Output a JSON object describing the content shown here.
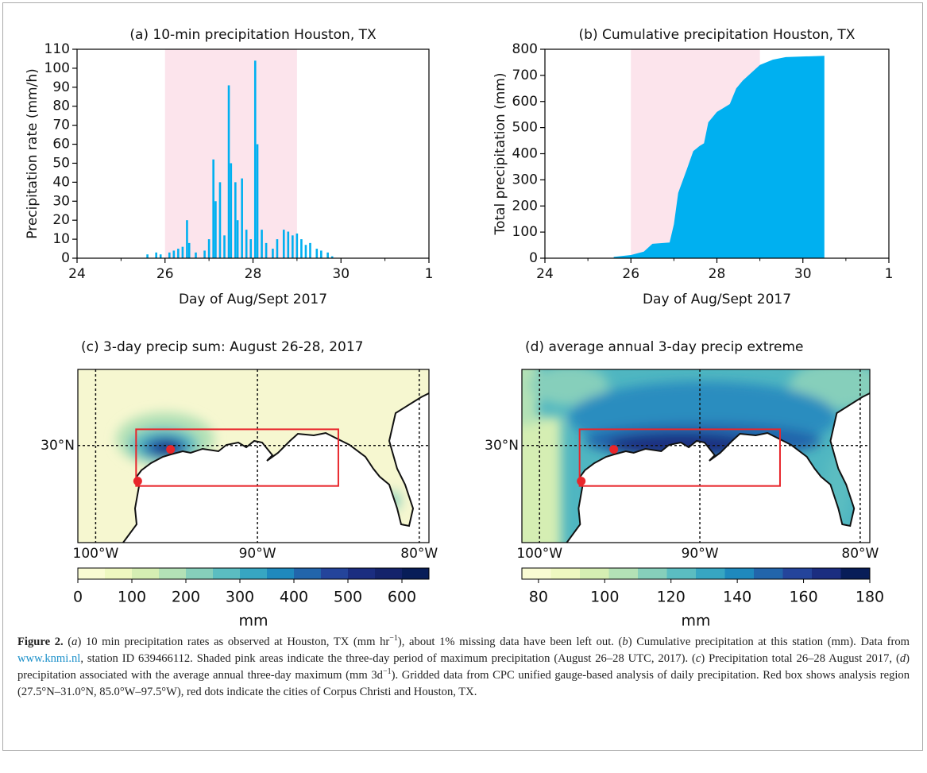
{
  "chart_data": [
    {
      "type": "bar",
      "title": "(a) 10-min precipitation Houston, TX",
      "xlabel": "Day of Aug/Sept 2017",
      "ylabel": "Precipitation rate (mm/h)",
      "x": [
        25.6,
        25.8,
        25.9,
        26.1,
        26.2,
        26.3,
        26.4,
        26.5,
        26.55,
        26.7,
        26.9,
        27.0,
        27.1,
        27.15,
        27.25,
        27.35,
        27.45,
        27.5,
        27.6,
        27.65,
        27.75,
        27.85,
        27.95,
        28.05,
        28.1,
        28.2,
        28.3,
        28.45,
        28.55,
        28.7,
        28.8,
        28.9,
        29.0,
        29.1,
        29.2,
        29.3,
        29.45,
        29.55,
        29.7,
        29.8
      ],
      "values": [
        2,
        3,
        2,
        3,
        4,
        5,
        6,
        20,
        8,
        3,
        4,
        10,
        52,
        30,
        40,
        12,
        91,
        50,
        40,
        20,
        42,
        15,
        10,
        104,
        60,
        15,
        8,
        5,
        10,
        15,
        14,
        12,
        13,
        10,
        7,
        8,
        5,
        4,
        3,
        1
      ],
      "color": "#00b0f0",
      "shade": {
        "xlim": [
          26,
          29
        ],
        "color": "#fce4ec"
      },
      "xlim": [
        24,
        32
      ],
      "xticks": [
        24,
        26,
        28,
        30,
        {
          "value": 32,
          "label": "1"
        }
      ],
      "xminorticks": [
        25,
        27,
        29,
        31
      ],
      "ylim": [
        0,
        110
      ],
      "yticks": [
        0,
        10,
        20,
        30,
        40,
        50,
        60,
        70,
        80,
        90,
        100,
        110
      ]
    },
    {
      "type": "area",
      "title": "(b) Cumulative precipitation Houston, TX",
      "xlabel": "Day of Aug/Sept 2017",
      "ylabel": "Total precipitation (mm)",
      "x": [
        25.6,
        26.0,
        26.3,
        26.5,
        26.9,
        27.0,
        27.1,
        27.3,
        27.45,
        27.6,
        27.7,
        27.8,
        28.0,
        28.1,
        28.3,
        28.45,
        28.6,
        28.8,
        29.0,
        29.3,
        29.6,
        30.5
      ],
      "values": [
        5,
        12,
        25,
        55,
        60,
        130,
        250,
        340,
        410,
        430,
        440,
        520,
        560,
        570,
        590,
        650,
        680,
        710,
        740,
        760,
        770,
        775
      ],
      "color": "#00b0f0",
      "shade": {
        "xlim": [
          26,
          29
        ],
        "color": "#fce4ec"
      },
      "xlim": [
        24,
        32
      ],
      "xticks": [
        24,
        26,
        28,
        30,
        {
          "value": 32,
          "label": "1"
        }
      ],
      "xminorticks": [
        25,
        27,
        29,
        31
      ],
      "ylim": [
        0,
        800
      ],
      "yticks": [
        0,
        100,
        200,
        300,
        400,
        500,
        600,
        700,
        800
      ]
    },
    {
      "type": "map",
      "title": "(c) 3-day precip sum: August 26-28, 2017",
      "xlim": [
        -101.1,
        -79.4
      ],
      "ylim": [
        24,
        34.7
      ],
      "xticks": [
        {
          "value": -100,
          "label": "100°W"
        },
        {
          "value": -90,
          "label": "90°W"
        },
        {
          "value": -80,
          "label": "80°W"
        }
      ],
      "yticks": [
        {
          "value": 30,
          "label": "30°N"
        }
      ],
      "box": {
        "lat": [
          27.5,
          31.0
        ],
        "lon": [
          -97.5,
          -85.0
        ],
        "color": "#e8262b"
      },
      "points": {
        "lat": [
          27.8,
          29.76
        ],
        "lon": [
          -97.4,
          -95.37
        ],
        "color": "#e8262b"
      },
      "colorbar": {
        "lim": [
          0,
          650
        ],
        "ticks": [
          0,
          100,
          200,
          300,
          400,
          500,
          600
        ],
        "label": "mm",
        "colors": [
          "#f9fbd3",
          "#eef8c0",
          "#d5eeb3",
          "#b3e1b6",
          "#86cfbb",
          "#5bbdc1",
          "#37a6c2",
          "#1f89bd",
          "#2265ab",
          "#24449b",
          "#1b2d80",
          "#14236b",
          "#081d58"
        ]
      }
    },
    {
      "type": "map",
      "title": "(d) average annual 3-day precip extreme",
      "xlim": [
        -101.1,
        -79.4
      ],
      "ylim": [
        24,
        34.7
      ],
      "xticks": [
        {
          "value": -100,
          "label": "100°W"
        },
        {
          "value": -90,
          "label": "90°W"
        },
        {
          "value": -80,
          "label": "80°W"
        }
      ],
      "yticks": [
        {
          "value": 30,
          "label": "30°N"
        }
      ],
      "box": {
        "lat": [
          27.5,
          31.0
        ],
        "lon": [
          -97.5,
          -85.0
        ],
        "color": "#e8262b"
      },
      "points": {
        "lat": [
          27.8,
          29.76
        ],
        "lon": [
          -97.4,
          -95.37
        ],
        "color": "#e8262b"
      },
      "colorbar": {
        "lim": [
          75,
          180
        ],
        "ticks": [
          80,
          100,
          120,
          140,
          160,
          180
        ],
        "label": "mm",
        "colors": [
          "#f9fbd3",
          "#eef8c0",
          "#d5eeb3",
          "#b3e1b6",
          "#86cfbb",
          "#5bbdc1",
          "#37a6c2",
          "#1f89bd",
          "#2265ab",
          "#24449b",
          "#1b2d80",
          "#081d58"
        ]
      }
    }
  ],
  "caption": {
    "runs": [
      {
        "text": "Figure 2.",
        "style": "bold"
      },
      {
        "text": " ("
      },
      {
        "text": "a",
        "style": "italic"
      },
      {
        "text": ") 10 min precipitation rates as observed at Houston, TX (mm hr"
      },
      {
        "text": "−1",
        "style": "sup"
      },
      {
        "text": "), about 1% missing data have been left out. ("
      },
      {
        "text": "b",
        "style": "italic"
      },
      {
        "text": ") Cumulative precipitation at this station (mm). Data from "
      },
      {
        "text": "www.knmi.nl",
        "style": "link"
      },
      {
        "text": ", station ID 639466112. Shaded pink areas indicate the three-day period of maximum precipitation (August 26–28 UTC, 2017). ("
      },
      {
        "text": "c",
        "style": "italic"
      },
      {
        "text": ") Precipitation total 26–28 August 2017, ("
      },
      {
        "text": "d",
        "style": "italic"
      },
      {
        "text": ") precipitation associated with the average annual three-day maximum (mm 3d"
      },
      {
        "text": "−1",
        "style": "sup"
      },
      {
        "text": "). Gridded data from CPC unified gauge-based analysis of daily precipitation. Red box shows analysis region (27.5°N–31.0°N, 85.0°W–97.5°W), red dots indicate the cities of Corpus Christi and Houston, TX."
      }
    ]
  }
}
